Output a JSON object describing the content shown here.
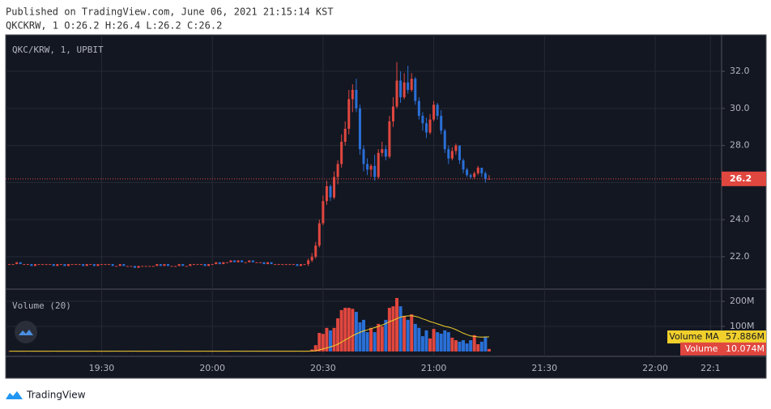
{
  "chart_data": {
    "type": "candlestick",
    "title": "Published on TradingView.com, June 06, 2021 21:15:14 KST",
    "subtitle": "QKCKRW, 1 O:26.2 H:26.4 L:26.2 C:26.2",
    "symbol": "QKC/KRW, 1, UPBIT",
    "x": [
      "19:05",
      "19:06",
      "19:07",
      "19:08",
      "19:09",
      "19:10",
      "19:11",
      "19:12",
      "19:13",
      "19:14",
      "19:15",
      "19:16",
      "19:17",
      "19:18",
      "19:19",
      "19:20",
      "19:21",
      "19:22",
      "19:23",
      "19:24",
      "19:25",
      "19:26",
      "19:27",
      "19:28",
      "19:29",
      "19:30",
      "19:31",
      "19:32",
      "19:33",
      "19:34",
      "19:35",
      "19:36",
      "19:37",
      "19:38",
      "19:39",
      "19:40",
      "19:41",
      "19:42",
      "19:43",
      "19:44",
      "19:45",
      "19:46",
      "19:47",
      "19:48",
      "19:49",
      "19:50",
      "19:51",
      "19:52",
      "19:53",
      "19:54",
      "19:55",
      "19:56",
      "19:57",
      "19:58",
      "19:59",
      "20:00",
      "20:01",
      "20:02",
      "20:03",
      "20:04",
      "20:05",
      "20:06",
      "20:07",
      "20:08",
      "20:09",
      "20:10",
      "20:11",
      "20:12",
      "20:13",
      "20:14",
      "20:15",
      "20:16",
      "20:17",
      "20:18",
      "20:19",
      "20:20",
      "20:21",
      "20:22",
      "20:23",
      "20:24",
      "20:25",
      "20:26",
      "20:27",
      "20:28",
      "20:29",
      "20:30",
      "20:31",
      "20:32",
      "20:33",
      "20:34",
      "20:35",
      "20:36",
      "20:37",
      "20:38",
      "20:39",
      "20:40",
      "20:41",
      "20:42",
      "20:43",
      "20:44",
      "20:45",
      "20:46",
      "20:47",
      "20:48",
      "20:49",
      "20:50",
      "20:51",
      "20:52",
      "20:53",
      "20:54",
      "20:55",
      "20:56",
      "20:57",
      "20:58",
      "20:59",
      "21:00",
      "21:01",
      "21:02",
      "21:03",
      "21:04",
      "21:05",
      "21:06",
      "21:07",
      "21:08",
      "21:09",
      "21:10",
      "21:11",
      "21:12",
      "21:13",
      "21:14",
      "21:15"
    ],
    "open": [
      21.6,
      21.6,
      21.6,
      21.7,
      21.6,
      21.6,
      21.6,
      21.5,
      21.6,
      21.6,
      21.6,
      21.6,
      21.6,
      21.5,
      21.6,
      21.6,
      21.5,
      21.6,
      21.6,
      21.6,
      21.6,
      21.5,
      21.6,
      21.6,
      21.5,
      21.6,
      21.6,
      21.6,
      21.6,
      21.5,
      21.5,
      21.6,
      21.5,
      21.5,
      21.5,
      21.4,
      21.5,
      21.5,
      21.5,
      21.5,
      21.5,
      21.6,
      21.5,
      21.6,
      21.5,
      21.5,
      21.5,
      21.6,
      21.5,
      21.5,
      21.6,
      21.6,
      21.6,
      21.6,
      21.5,
      21.6,
      21.6,
      21.7,
      21.6,
      21.7,
      21.7,
      21.8,
      21.7,
      21.8,
      21.7,
      21.7,
      21.8,
      21.7,
      21.7,
      21.7,
      21.6,
      21.7,
      21.6,
      21.6,
      21.6,
      21.6,
      21.6,
      21.6,
      21.6,
      21.5,
      21.6,
      21.6,
      21.8,
      22.0,
      22.6,
      23.8,
      25.0,
      25.8,
      25.2,
      26.3,
      27.0,
      28.2,
      28.9,
      30.5,
      31.0,
      30.0,
      27.8,
      27.0,
      26.7,
      26.9,
      26.3,
      27.6,
      27.8,
      27.4,
      29.3,
      30.1,
      31.5,
      30.6,
      31.4,
      31.0,
      31.6,
      30.4,
      29.6,
      29.2,
      28.7,
      29.4,
      30.2,
      29.6,
      28.8,
      27.8,
      27.3,
      27.7,
      28.0,
      27.2,
      26.7,
      26.4,
      26.3,
      26.5,
      26.8,
      26.5,
      26.2
    ],
    "high": [
      21.6,
      21.6,
      21.7,
      21.7,
      21.6,
      21.6,
      21.6,
      21.6,
      21.6,
      21.6,
      21.6,
      21.6,
      21.6,
      21.6,
      21.6,
      21.6,
      21.6,
      21.6,
      21.6,
      21.6,
      21.6,
      21.6,
      21.6,
      21.6,
      21.6,
      21.6,
      21.6,
      21.6,
      21.6,
      21.5,
      21.6,
      21.6,
      21.5,
      21.5,
      21.5,
      21.5,
      21.5,
      21.5,
      21.5,
      21.5,
      21.6,
      21.6,
      21.6,
      21.6,
      21.5,
      21.5,
      21.6,
      21.6,
      21.5,
      21.6,
      21.6,
      21.6,
      21.6,
      21.6,
      21.6,
      21.6,
      21.7,
      21.7,
      21.7,
      21.7,
      21.8,
      21.8,
      21.8,
      21.8,
      21.7,
      21.8,
      21.8,
      21.7,
      21.7,
      21.7,
      21.7,
      21.7,
      21.6,
      21.6,
      21.6,
      21.6,
      21.6,
      21.6,
      21.6,
      21.6,
      21.6,
      21.9,
      22.2,
      22.8,
      24.0,
      25.3,
      26.1,
      25.9,
      26.6,
      27.2,
      28.6,
      29.3,
      31.0,
      31.3,
      31.6,
      30.2,
      28.0,
      27.3,
      27.0,
      27.5,
      27.8,
      28.2,
      28.0,
      29.6,
      30.6,
      32.5,
      32.0,
      31.9,
      32.3,
      31.9,
      31.7,
      30.6,
      29.8,
      29.5,
      29.7,
      30.4,
      30.3,
      29.9,
      28.9,
      28.0,
      27.9,
      28.1,
      28.0,
      27.3,
      26.8,
      26.5,
      26.6,
      26.9,
      26.8,
      26.6,
      26.4
    ],
    "low": [
      21.6,
      21.6,
      21.6,
      21.6,
      21.6,
      21.6,
      21.5,
      21.5,
      21.6,
      21.6,
      21.6,
      21.6,
      21.5,
      21.5,
      21.6,
      21.5,
      21.5,
      21.6,
      21.6,
      21.6,
      21.5,
      21.5,
      21.6,
      21.5,
      21.5,
      21.6,
      21.6,
      21.6,
      21.5,
      21.5,
      21.5,
      21.5,
      21.5,
      21.5,
      21.4,
      21.4,
      21.5,
      21.5,
      21.5,
      21.5,
      21.5,
      21.5,
      21.5,
      21.5,
      21.5,
      21.5,
      21.5,
      21.5,
      21.5,
      21.5,
      21.6,
      21.6,
      21.6,
      21.5,
      21.5,
      21.6,
      21.6,
      21.6,
      21.6,
      21.7,
      21.7,
      21.7,
      21.7,
      21.7,
      21.7,
      21.7,
      21.7,
      21.7,
      21.7,
      21.6,
      21.6,
      21.6,
      21.6,
      21.6,
      21.6,
      21.6,
      21.6,
      21.6,
      21.5,
      21.5,
      21.6,
      21.5,
      21.7,
      21.9,
      22.5,
      23.7,
      24.8,
      25.0,
      25.1,
      25.9,
      26.8,
      28.0,
      28.6,
      29.8,
      29.8,
      27.5,
      26.6,
      26.4,
      26.3,
      26.1,
      26.2,
      27.4,
      27.2,
      27.3,
      29.0,
      30.0,
      30.3,
      30.5,
      30.8,
      30.9,
      30.2,
      29.4,
      28.8,
      28.4,
      28.6,
      29.3,
      29.4,
      28.6,
      27.6,
      27.0,
      27.2,
      27.5,
      27.0,
      26.5,
      26.3,
      26.2,
      26.2,
      26.4,
      26.3,
      26.0,
      26.2
    ],
    "close": [
      21.6,
      21.6,
      21.7,
      21.6,
      21.6,
      21.6,
      21.5,
      21.6,
      21.6,
      21.6,
      21.6,
      21.6,
      21.5,
      21.6,
      21.6,
      21.5,
      21.6,
      21.6,
      21.6,
      21.6,
      21.5,
      21.6,
      21.6,
      21.5,
      21.6,
      21.6,
      21.6,
      21.6,
      21.5,
      21.5,
      21.6,
      21.5,
      21.5,
      21.5,
      21.4,
      21.5,
      21.5,
      21.5,
      21.5,
      21.5,
      21.6,
      21.5,
      21.6,
      21.5,
      21.5,
      21.5,
      21.6,
      21.5,
      21.5,
      21.6,
      21.6,
      21.6,
      21.6,
      21.5,
      21.6,
      21.6,
      21.7,
      21.6,
      21.7,
      21.7,
      21.8,
      21.7,
      21.8,
      21.7,
      21.7,
      21.8,
      21.7,
      21.7,
      21.7,
      21.6,
      21.7,
      21.6,
      21.6,
      21.6,
      21.6,
      21.6,
      21.6,
      21.6,
      21.5,
      21.6,
      21.6,
      21.8,
      22.0,
      22.6,
      23.8,
      25.0,
      25.8,
      25.2,
      26.3,
      27.0,
      28.2,
      28.9,
      30.5,
      31.0,
      30.0,
      27.8,
      27.0,
      26.7,
      26.9,
      26.3,
      27.6,
      27.8,
      27.4,
      29.3,
      30.1,
      31.5,
      30.6,
      31.4,
      31.0,
      31.6,
      30.4,
      29.6,
      29.2,
      28.7,
      29.4,
      30.2,
      29.6,
      28.8,
      27.8,
      27.3,
      27.7,
      28.0,
      27.2,
      26.7,
      26.4,
      26.3,
      26.5,
      26.8,
      26.5,
      26.2,
      26.2
    ],
    "up_color": "#e0473f",
    "down_color": "#2a6fd6",
    "xlim": [
      "19:04",
      "22:18"
    ],
    "xticks": [
      "19:30",
      "20:00",
      "20:30",
      "21:00",
      "21:30",
      "22:00",
      {
        "value": "22:15",
        "label": "22:1"
      }
    ],
    "ylim": [
      20.25,
      33.97
    ],
    "yticks": [
      {
        "value": 22,
        "label": "22.0"
      },
      {
        "value": 24,
        "label": "24.0"
      },
      {
        "value": 26,
        "label": "26.0"
      },
      {
        "value": 28,
        "label": "28.0"
      },
      {
        "value": 30,
        "label": "30.0"
      },
      {
        "value": 32,
        "label": "32.0"
      }
    ],
    "grid": true,
    "last_price": 26.2,
    "volume": {
      "name": "Volume",
      "label": "Volume (20)",
      "values": [
        1,
        2,
        1,
        1,
        1,
        2,
        1,
        1,
        1,
        1,
        1,
        1,
        2,
        1,
        1,
        1,
        1,
        2,
        1,
        1,
        1,
        1,
        1,
        2,
        1,
        1,
        1,
        1,
        1,
        2,
        1,
        1,
        2,
        1,
        3,
        1,
        1,
        1,
        1,
        1,
        2,
        1,
        1,
        1,
        1,
        1,
        2,
        1,
        1,
        1,
        1,
        1,
        1,
        2,
        1,
        1,
        2,
        1,
        1,
        1,
        3,
        1,
        2,
        1,
        1,
        2,
        1,
        1,
        1,
        1,
        1,
        1,
        1,
        1,
        1,
        1,
        1,
        1,
        2,
        1,
        1,
        3,
        8,
        25,
        74,
        70,
        94,
        84,
        94,
        132,
        165,
        174,
        174,
        170,
        158,
        116,
        126,
        77,
        94,
        77,
        110,
        100,
        126,
        174,
        180,
        213,
        180,
        142,
        126,
        148,
        110,
        94,
        61,
        84,
        52,
        90,
        77,
        71,
        84,
        77,
        55,
        45,
        39,
        45,
        32,
        45,
        65,
        29,
        39,
        58,
        10.074
      ],
      "last_value_label": "10.074M",
      "ylim": [
        -19.4,
        248.4
      ],
      "yticks": [
        {
          "value": 100,
          "label": "100M"
        },
        {
          "value": 200,
          "label": "200M"
        }
      ],
      "ma": {
        "name": "Volume MA",
        "color": "#f2d02c",
        "values": [
          1.2,
          1.2,
          1.2,
          1.2,
          1.2,
          1.2,
          1.2,
          1.2,
          1.2,
          1.2,
          1.2,
          1.2,
          1.2,
          1.2,
          1.2,
          1.2,
          1.2,
          1.2,
          1.2,
          1.2,
          1.2,
          1.2,
          1.2,
          1.2,
          1.2,
          1.2,
          1.2,
          1.2,
          1.2,
          1.2,
          1.2,
          1.2,
          1.2,
          1.2,
          1.2,
          1.2,
          1.2,
          1.2,
          1.2,
          1.2,
          1.2,
          1.2,
          1.2,
          1.2,
          1.2,
          1.2,
          1.2,
          1.2,
          1.2,
          1.2,
          1.2,
          1.2,
          1.2,
          1.2,
          1.2,
          1.2,
          1.2,
          1.2,
          1.2,
          1.2,
          1.2,
          1.2,
          1.2,
          1.2,
          1.2,
          1.2,
          1.2,
          1.2,
          1.2,
          1.2,
          1.2,
          1.2,
          1.2,
          1.2,
          1.2,
          1.2,
          1.2,
          1.2,
          1.2,
          1.2,
          1.2,
          1.3,
          1.6,
          2.8,
          6.4,
          9.8,
          14,
          18,
          23,
          29,
          37,
          46,
          54,
          63,
          70,
          76,
          82,
          86,
          91,
          95,
          100,
          105,
          111,
          119,
          124,
          131,
          137,
          140,
          142,
          143,
          140,
          136,
          130,
          125,
          119,
          115,
          110,
          105,
          100,
          97,
          93,
          87,
          80,
          73,
          67,
          62,
          60,
          58,
          57,
          58,
          57.886
        ],
        "last_value_label": "57.886M"
      }
    },
    "brand": "TradingView"
  }
}
